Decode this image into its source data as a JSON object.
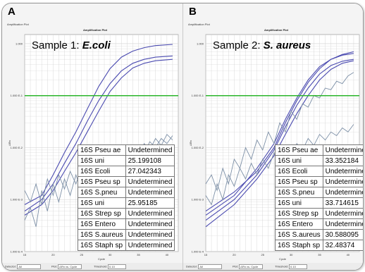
{
  "panels": [
    {
      "letter": "A",
      "window_title": "Amplification Plot",
      "plot_title": "Amplification Plot",
      "sample_prefix": "Sample 1: ",
      "sample_organism": "E.coli",
      "y_axis_label": "ΔRn",
      "x_axis_label": "Cycle",
      "y_ticks": [
        "1.000",
        "1.000 E-1",
        "1.000 E-2",
        "1.000 E-3",
        "1.000 E-4"
      ],
      "x_ticks": [
        "15",
        "20",
        "25",
        "30",
        "35",
        "40"
      ],
      "table": [
        [
          "16S Pseu ae",
          "Undetermined"
        ],
        [
          "16S uni",
          "25.199108"
        ],
        [
          "16S Ecoli",
          "27.042343"
        ],
        [
          "16S Pseu sp",
          "Undetermined"
        ],
        [
          "16S S.pneu",
          "Undetermined"
        ],
        [
          "16S uni",
          "25.95185"
        ],
        [
          "16S Strep sp",
          "Undetermined"
        ],
        [
          "16S Entero",
          "Undetermined"
        ],
        [
          "16S S.aureus",
          "Undetermined"
        ],
        [
          "16S Staph sp",
          "Undetermined"
        ]
      ],
      "bottom": {
        "detector_label": "Detector",
        "detector_value": "All",
        "plot_label": "Plot",
        "plot_value": "ΔRn vs. Cycle",
        "threshold_label": "Threshold",
        "threshold_value": "0.10"
      }
    },
    {
      "letter": "B",
      "window_title": "Amplification Plot",
      "plot_title": "Amplification Plot",
      "sample_prefix": "Sample 2: ",
      "sample_organism": "S. aureus",
      "y_axis_label": "ΔRn",
      "x_axis_label": "Cycle",
      "y_ticks": [
        "1.000",
        "1.000 E-1",
        "1.000 E-2",
        "1.000 E-3",
        "1.000 E-4"
      ],
      "x_ticks": [
        "15",
        "20",
        "25",
        "30",
        "35",
        "40"
      ],
      "table": [
        [
          "16S Pseu ae",
          "Undetermined"
        ],
        [
          "16S uni",
          "33.352184"
        ],
        [
          "16S Ecoli",
          "Undetermined"
        ],
        [
          "16S Pseu sp",
          "Undetermined"
        ],
        [
          "16S S.pneu",
          "Undetermined"
        ],
        [
          "16S uni",
          "33.714615"
        ],
        [
          "16S Strep sp",
          "Undetermined"
        ],
        [
          "16S Entero",
          "Undetermined"
        ],
        [
          "16S S.aureus",
          "30.588095"
        ],
        [
          "16S Staph sp",
          "32.48374"
        ]
      ],
      "bottom": {
        "detector_label": "Detector",
        "detector_value": "All",
        "plot_label": "Plot",
        "plot_value": "ΔRn vs. Cycle",
        "threshold_label": "Threshold",
        "threshold_value": "0.10"
      }
    }
  ],
  "chart_data": [
    {
      "type": "line",
      "title": "Amplification Plot",
      "xlabel": "Cycle",
      "ylabel": "ΔRn",
      "xlim": [
        15,
        42
      ],
      "ylim": [
        0.0001,
        1.5
      ],
      "yscale": "log",
      "grid": true,
      "threshold": 0.1,
      "threshold_color": "#2bb52b",
      "series": [
        {
          "values": [
            [
              15,
              0.0008
            ],
            [
              18,
              0.0012
            ],
            [
              20,
              0.003
            ],
            [
              22,
              0.008
            ],
            [
              24,
              0.02
            ],
            [
              26,
              0.055
            ],
            [
              28,
              0.15
            ],
            [
              30,
              0.33
            ],
            [
              32,
              0.55
            ],
            [
              34,
              0.72
            ],
            [
              36,
              0.84
            ],
            [
              38,
              0.92
            ],
            [
              41,
              0.97
            ]
          ]
        },
        {
          "values": [
            [
              15,
              0.0006
            ],
            [
              18,
              0.001
            ],
            [
              20,
              0.002
            ],
            [
              22,
              0.005
            ],
            [
              24,
              0.012
            ],
            [
              26,
              0.032
            ],
            [
              28,
              0.08
            ],
            [
              30,
              0.17
            ],
            [
              32,
              0.3
            ],
            [
              34,
              0.42
            ],
            [
              36,
              0.5
            ],
            [
              38,
              0.55
            ],
            [
              41,
              0.58
            ]
          ]
        },
        {
          "values": [
            [
              15,
              0.0005
            ],
            [
              18,
              0.0008
            ],
            [
              20,
              0.0015
            ],
            [
              22,
              0.0035
            ],
            [
              24,
              0.008
            ],
            [
              26,
              0.02
            ],
            [
              28,
              0.05
            ],
            [
              30,
              0.12
            ],
            [
              32,
              0.22
            ],
            [
              34,
              0.34
            ],
            [
              36,
              0.42
            ],
            [
              38,
              0.47
            ],
            [
              41,
              0.5
            ]
          ]
        },
        {
          "values": [
            [
              15,
              0.0004
            ],
            [
              16,
              0.0007
            ],
            [
              17,
              0.0003
            ],
            [
              18,
              0.0015
            ],
            [
              19,
              0.0006
            ],
            [
              20,
              0.002
            ],
            [
              21,
              0.0009
            ],
            [
              22,
              0.0025
            ],
            [
              23,
              0.0012
            ],
            [
              24,
              0.003
            ],
            [
              25,
              0.0015
            ],
            [
              26,
              0.004
            ],
            [
              27,
              0.002
            ],
            [
              28,
              0.005
            ],
            [
              29,
              0.003
            ],
            [
              30,
              0.006
            ],
            [
              31,
              0.004
            ],
            [
              32,
              0.008
            ],
            [
              33,
              0.005
            ],
            [
              34,
              0.01
            ],
            [
              35,
              0.007
            ],
            [
              36,
              0.012
            ],
            [
              37,
              0.009
            ],
            [
              38,
              0.015
            ],
            [
              39,
              0.011
            ],
            [
              40,
              0.018
            ],
            [
              41,
              0.014
            ]
          ]
        },
        {
          "values": [
            [
              15,
              0.0015
            ],
            [
              16,
              0.0009
            ],
            [
              17,
              0.002
            ],
            [
              18,
              0.0008
            ],
            [
              19,
              0.0025
            ],
            [
              20,
              0.0012
            ],
            [
              21,
              0.003
            ],
            [
              22,
              0.0016
            ],
            [
              23,
              0.0035
            ],
            [
              24,
              0.002
            ],
            [
              25,
              0.004
            ],
            [
              26,
              0.0025
            ],
            [
              27,
              0.005
            ],
            [
              28,
              0.003
            ],
            [
              29,
              0.006
            ],
            [
              30,
              0.004
            ],
            [
              31,
              0.007
            ],
            [
              32,
              0.005
            ],
            [
              33,
              0.009
            ],
            [
              34,
              0.006
            ],
            [
              35,
              0.011
            ],
            [
              36,
              0.008
            ],
            [
              37,
              0.013
            ],
            [
              38,
              0.01
            ],
            [
              39,
              0.015
            ],
            [
              40,
              0.012
            ],
            [
              41,
              0.017
            ]
          ]
        }
      ]
    },
    {
      "type": "line",
      "title": "Amplification Plot",
      "xlabel": "Cycle",
      "ylabel": "ΔRn",
      "xlim": [
        15,
        42
      ],
      "ylim": [
        0.0001,
        1.5
      ],
      "yscale": "log",
      "grid": true,
      "threshold": 0.1,
      "threshold_color": "#2bb52b",
      "series": [
        {
          "values": [
            [
              15,
              0.0005
            ],
            [
              20,
              0.0012
            ],
            [
              24,
              0.004
            ],
            [
              27,
              0.012
            ],
            [
              29,
              0.035
            ],
            [
              31,
              0.09
            ],
            [
              33,
              0.2
            ],
            [
              35,
              0.36
            ],
            [
              37,
              0.5
            ],
            [
              39,
              0.6
            ],
            [
              41,
              0.65
            ]
          ]
        },
        {
          "values": [
            [
              15,
              0.0004
            ],
            [
              20,
              0.001
            ],
            [
              24,
              0.003
            ],
            [
              27,
              0.009
            ],
            [
              29,
              0.025
            ],
            [
              31,
              0.065
            ],
            [
              33,
              0.14
            ],
            [
              35,
              0.26
            ],
            [
              37,
              0.38
            ],
            [
              39,
              0.46
            ],
            [
              41,
              0.5
            ]
          ]
        },
        {
          "values": [
            [
              15,
              0.0006
            ],
            [
              20,
              0.0014
            ],
            [
              24,
              0.0035
            ],
            [
              27,
              0.01
            ],
            [
              29,
              0.03
            ],
            [
              31,
              0.08
            ],
            [
              33,
              0.18
            ],
            [
              35,
              0.33
            ],
            [
              37,
              0.5
            ],
            [
              39,
              0.62
            ],
            [
              41,
              0.7
            ]
          ]
        },
        {
          "values": [
            [
              15,
              0.0003
            ],
            [
              20,
              0.0008
            ],
            [
              24,
              0.0025
            ],
            [
              27,
              0.007
            ],
            [
              29,
              0.018
            ],
            [
              31,
              0.045
            ],
            [
              33,
              0.1
            ],
            [
              35,
              0.2
            ],
            [
              37,
              0.32
            ],
            [
              39,
              0.42
            ],
            [
              41,
              0.47
            ]
          ]
        },
        {
          "values": [
            [
              15,
              0.002
            ],
            [
              16,
              0.003
            ],
            [
              17,
              0.0015
            ],
            [
              18,
              0.004
            ],
            [
              19,
              0.002
            ],
            [
              20,
              0.006
            ],
            [
              21,
              0.004
            ],
            [
              22,
              0.01
            ],
            [
              23,
              0.006
            ],
            [
              24,
              0.014
            ],
            [
              25,
              0.009
            ],
            [
              26,
              0.02
            ],
            [
              27,
              0.012
            ],
            [
              28,
              0.03
            ],
            [
              29,
              0.02
            ],
            [
              30,
              0.05
            ],
            [
              31,
              0.035
            ],
            [
              32,
              0.07
            ],
            [
              33,
              0.06
            ],
            [
              34,
              0.1
            ],
            [
              35,
              0.09
            ],
            [
              36,
              0.14
            ],
            [
              37,
              0.13
            ],
            [
              38,
              0.19
            ],
            [
              39,
              0.17
            ],
            [
              40,
              0.24
            ],
            [
              41,
              0.28
            ]
          ]
        },
        {
          "values": [
            [
              15,
              0.0012
            ],
            [
              16,
              0.0008
            ],
            [
              17,
              0.002
            ],
            [
              18,
              0.001
            ],
            [
              19,
              0.003
            ],
            [
              20,
              0.0018
            ],
            [
              21,
              0.004
            ],
            [
              22,
              0.0025
            ],
            [
              23,
              0.005
            ],
            [
              24,
              0.003
            ],
            [
              25,
              0.006
            ],
            [
              26,
              0.004
            ],
            [
              27,
              0.008
            ],
            [
              28,
              0.005
            ],
            [
              29,
              0.01
            ],
            [
              30,
              0.007
            ],
            [
              31,
              0.012
            ],
            [
              32,
              0.009
            ],
            [
              33,
              0.015
            ],
            [
              34,
              0.011
            ],
            [
              35,
              0.018
            ],
            [
              36,
              0.014
            ],
            [
              37,
              0.02
            ],
            [
              38,
              0.017
            ],
            [
              39,
              0.024
            ],
            [
              40,
              0.02
            ],
            [
              41,
              0.028
            ]
          ]
        }
      ]
    }
  ],
  "colors": {
    "curve": "#4a4ab0",
    "noise": "#7c8fa6",
    "threshold": "#2bb52b",
    "grid": "#d0d0d0"
  }
}
